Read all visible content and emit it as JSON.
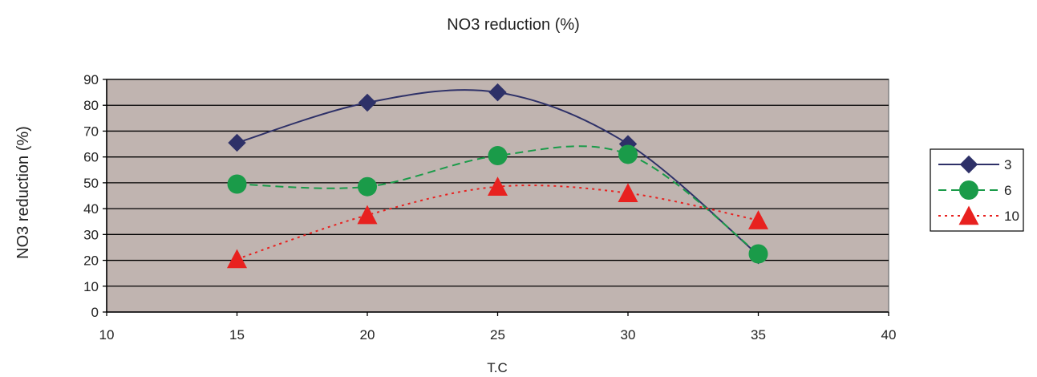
{
  "chart_data": {
    "type": "line",
    "title": "NO3 reduction (%)",
    "xlabel": "T.C",
    "ylabel": "NO3 reduction (%)",
    "xlim": [
      10,
      40
    ],
    "ylim": [
      0,
      90
    ],
    "xticks": [
      10,
      15,
      20,
      25,
      30,
      35,
      40
    ],
    "yticks": [
      0,
      10,
      20,
      30,
      40,
      50,
      60,
      70,
      80,
      90
    ],
    "grid": "horizontal",
    "plot_background": "#c0b4b0",
    "legend_position": "right",
    "x": [
      15,
      20,
      25,
      30,
      35
    ],
    "series": [
      {
        "name": "3",
        "values": [
          65.5,
          81,
          85,
          65,
          22
        ],
        "color": "#2e3168",
        "marker": "diamond",
        "line": "solid"
      },
      {
        "name": "6",
        "values": [
          49.5,
          48.5,
          60.5,
          61,
          22.5
        ],
        "color": "#1a9b49",
        "marker": "circle",
        "line": "dashed"
      },
      {
        "name": "10",
        "values": [
          20.5,
          37.5,
          48.5,
          46,
          35.5
        ],
        "color": "#e8211f",
        "marker": "triangle",
        "line": "dotted"
      }
    ]
  }
}
